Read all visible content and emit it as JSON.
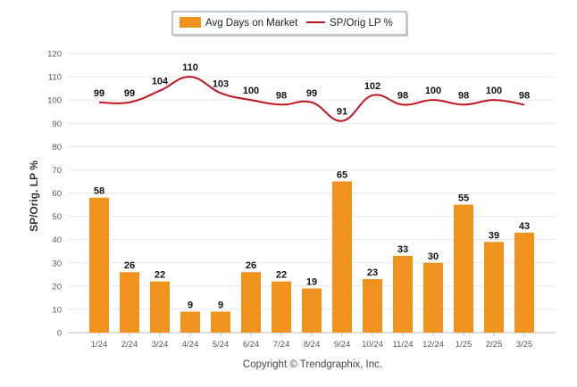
{
  "chart_data": {
    "type": "bar",
    "categories": [
      "1/24",
      "2/24",
      "3/24",
      "4/24",
      "5/24",
      "6/24",
      "7/24",
      "8/24",
      "9/24",
      "10/24",
      "11/24",
      "12/24",
      "1/25",
      "2/25",
      "3/25"
    ],
    "series": [
      {
        "name": "Avg Days on Market",
        "type": "bar",
        "color": "#f0921e",
        "values": [
          58,
          26,
          22,
          9,
          9,
          26,
          22,
          19,
          65,
          23,
          33,
          30,
          55,
          39,
          43
        ]
      },
      {
        "name": "SP/Orig LP %",
        "type": "line",
        "color": "#c0161f",
        "values": [
          99,
          99,
          104,
          110,
          103,
          100,
          98,
          99,
          91,
          102,
          98,
          100,
          98,
          100,
          98
        ]
      }
    ],
    "ylabel": "SP/Orig. LP %",
    "ylim": [
      0,
      120
    ],
    "yticks": [
      0,
      10,
      20,
      30,
      40,
      50,
      60,
      70,
      80,
      90,
      100,
      110,
      120
    ],
    "grid": true,
    "legend_position": "top-center"
  },
  "footer": {
    "copyright": "Copyright © Trendgraphix, Inc."
  }
}
